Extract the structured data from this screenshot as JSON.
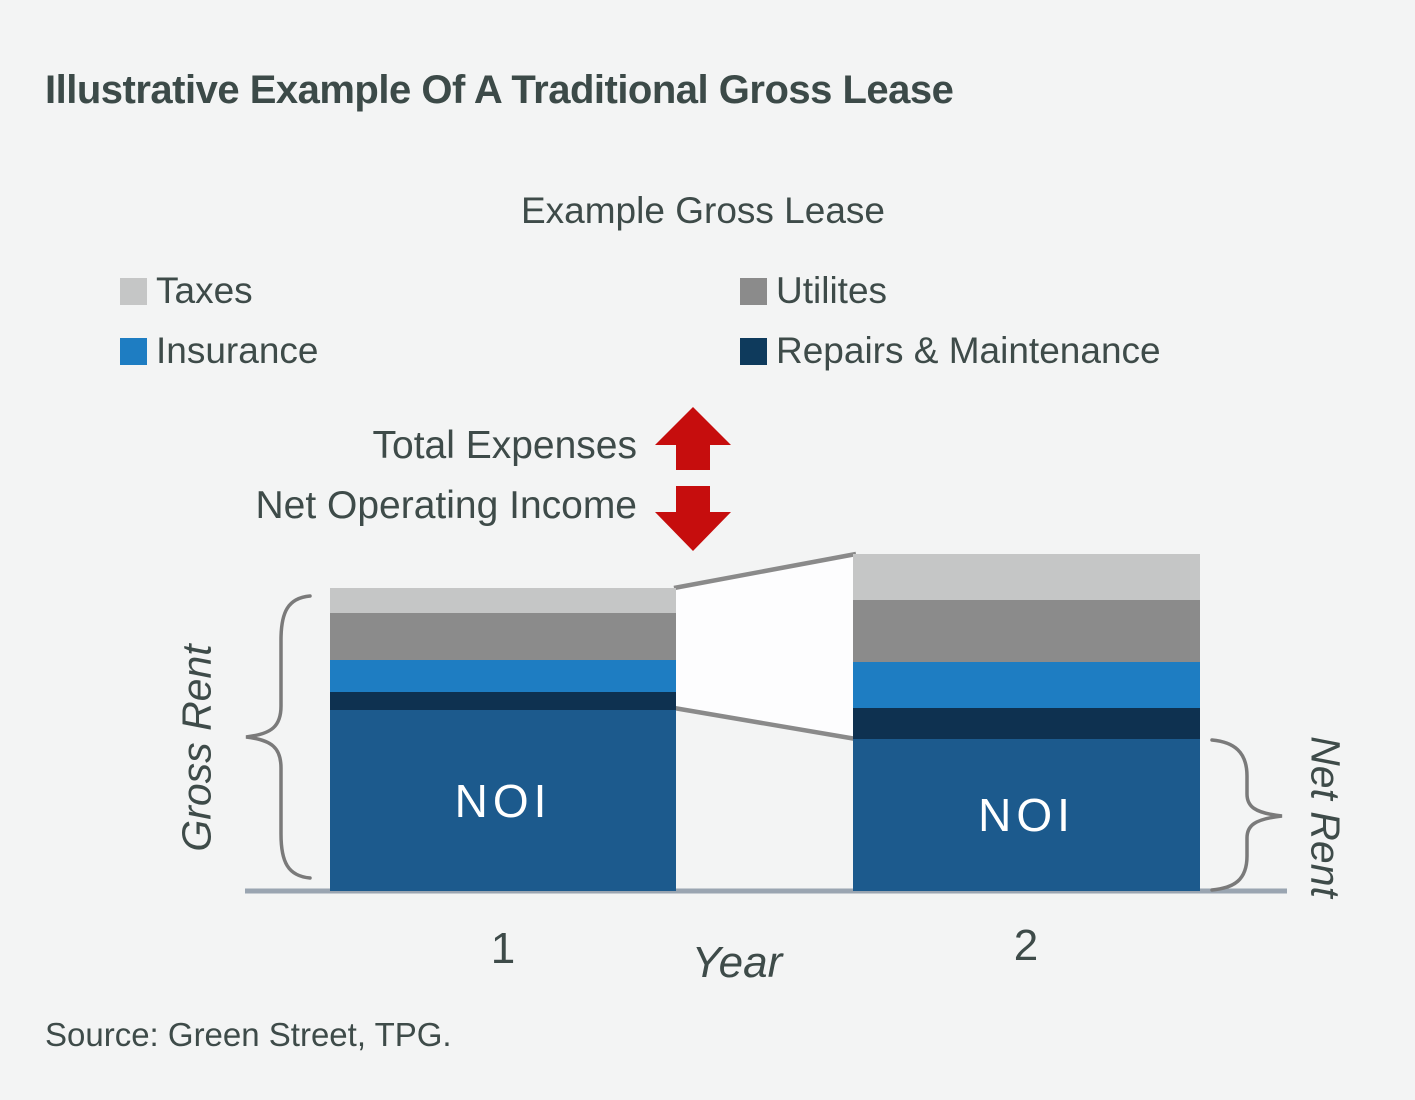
{
  "header": {
    "title": "Illustrative Example Of A Traditional Gross Lease"
  },
  "source": "Source: Green Street, TPG.",
  "colors": {
    "background": "#f3f4f4",
    "text": "#3e4b49",
    "arrow_red": "#c60d0d",
    "axis": "#9aa5b1",
    "connector": "#8a8a8a",
    "gap_fill": "#fdfdfe",
    "brace": "#7a7a7a",
    "noi_text": "#ffffff"
  },
  "chart_data": {
    "type": "bar",
    "stacked": true,
    "title": "Example Gross Lease",
    "categories": [
      "1",
      "2"
    ],
    "xlabel": "Year",
    "ylabel": "",
    "units": "relative height units (no numeric axis shown; values estimated from bar proportions)",
    "series": [
      {
        "name": "NOI",
        "color": "#1c5a8d",
        "values": [
          181,
          152
        ]
      },
      {
        "name": "Repairs & Maintenance",
        "color": "#0e3150",
        "values": [
          18,
          31
        ]
      },
      {
        "name": "Insurance",
        "color": "#1e7dc2",
        "values": [
          32,
          46
        ]
      },
      {
        "name": "Utilites",
        "color": "#8b8b8b",
        "values": [
          47,
          62
        ]
      },
      {
        "name": "Taxes",
        "color": "#c5c6c6",
        "values": [
          25,
          46
        ]
      }
    ],
    "bar_inner_labels": [
      "NOI",
      "NOI"
    ],
    "legend": [
      {
        "label": "Taxes",
        "color": "#c5c6c6"
      },
      {
        "label": "Utilites",
        "color": "#8b8b8b"
      },
      {
        "label": "Insurance",
        "color": "#1e7dc2"
      },
      {
        "label": "Repairs & Maintenance",
        "color": "#0e3a5c"
      }
    ],
    "annotations": {
      "total_expenses": "Total Expenses",
      "net_operating_income": "Net Operating Income",
      "gross_rent": "Gross Rent",
      "net_rent": "Net Rent"
    },
    "layout_hints": {
      "legend_position": "top, two columns",
      "grid": false,
      "gap_between_bars": "white wedge connecting expense blocks of year 1 and year 2"
    }
  }
}
